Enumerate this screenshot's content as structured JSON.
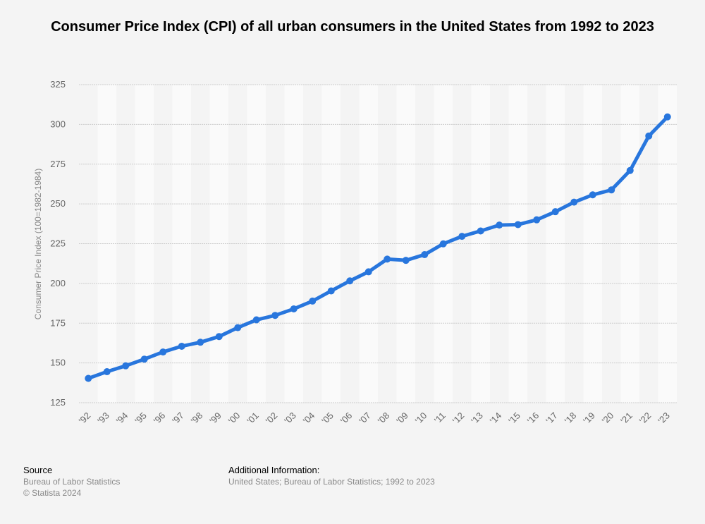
{
  "title": "Consumer Price Index (CPI) of all urban consumers in the United States from 1992 to 2023",
  "chart_data": {
    "type": "line",
    "title": "Consumer Price Index (CPI) of all urban consumers in the United States from 1992 to 2023",
    "xlabel": "",
    "ylabel": "Consumer Price Index (100=1982-1984)",
    "categories": [
      "'92",
      "'93",
      "'94",
      "'95",
      "'96",
      "'97",
      "'98",
      "'99",
      "'00",
      "'01",
      "'02",
      "'03",
      "'04",
      "'05",
      "'06",
      "'07",
      "'08",
      "'09",
      "'10",
      "'11",
      "'12",
      "'13",
      "'14",
      "'15",
      "'16",
      "'17",
      "'18",
      "'19",
      "'20",
      "'21",
      "'22",
      "'23"
    ],
    "series": [
      {
        "name": "CPI",
        "color": "#2876dd",
        "values": [
          140.3,
          144.5,
          148.2,
          152.4,
          156.9,
          160.5,
          163.0,
          166.6,
          172.2,
          177.1,
          179.9,
          184.0,
          188.9,
          195.3,
          201.6,
          207.3,
          215.3,
          214.5,
          218.1,
          224.9,
          229.6,
          233.0,
          236.7,
          237.0,
          240.0,
          245.1,
          251.1,
          255.7,
          258.8,
          271.0,
          292.7,
          304.7
        ]
      }
    ],
    "ylim": [
      125,
      325
    ],
    "yticks": [
      125,
      150,
      175,
      200,
      225,
      250,
      275,
      300,
      325
    ],
    "grid": true
  },
  "footer": {
    "source_heading": "Source",
    "source_lines": [
      "Bureau of Labor Statistics",
      "© Statista 2024"
    ],
    "additional_heading": "Additional Information:",
    "additional_line": "United States; Bureau of Labor Statistics; 1992 to 2023"
  }
}
